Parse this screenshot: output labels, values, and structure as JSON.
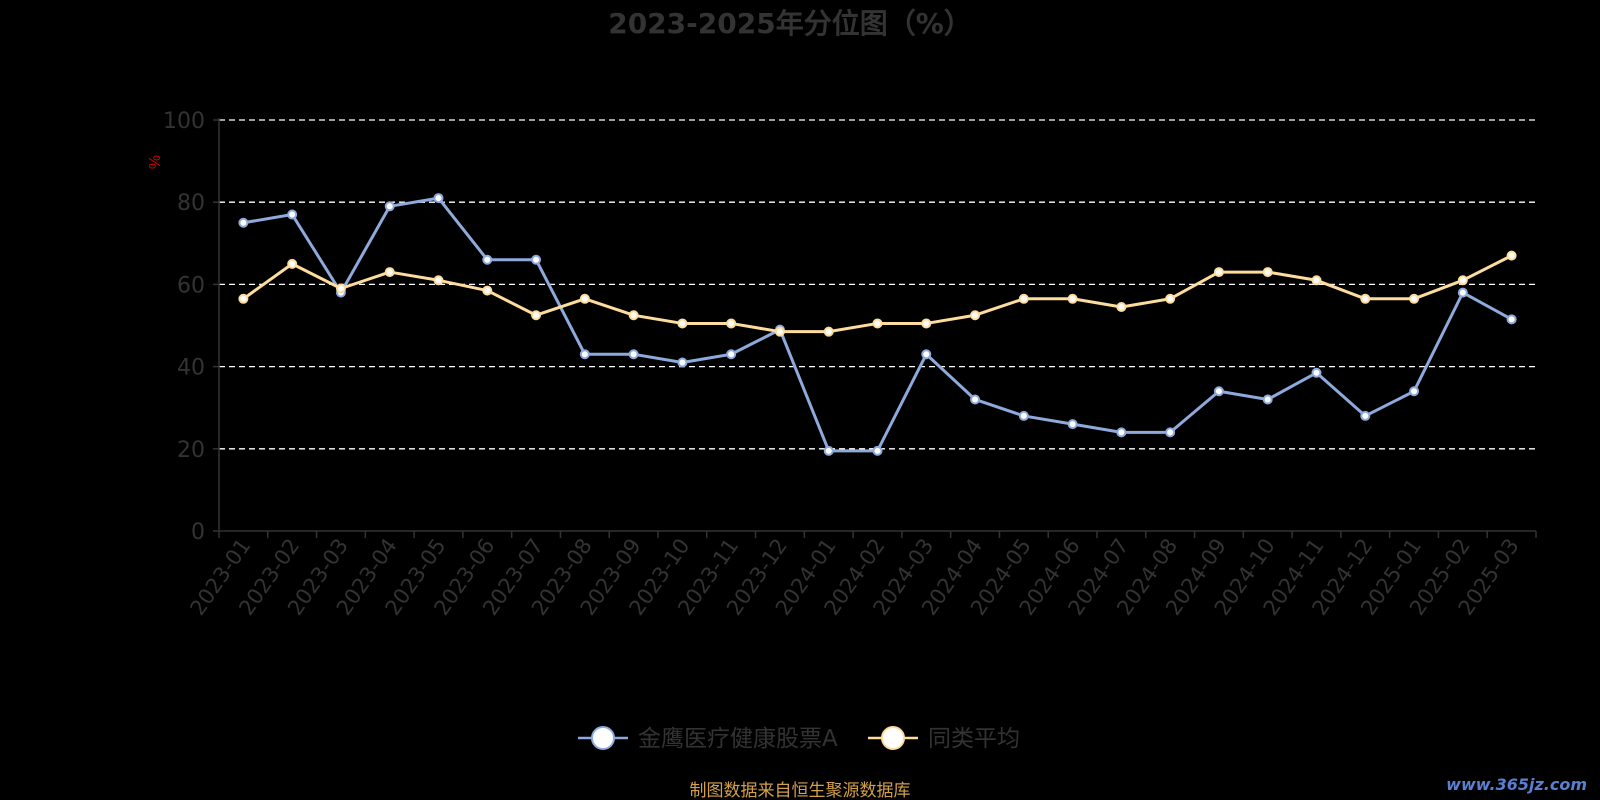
{
  "chart_data": {
    "type": "line",
    "title": "2023-2025年分位图（%）",
    "ylabel": "%",
    "ylim": [
      0,
      100
    ],
    "yticks": [
      0,
      20,
      40,
      60,
      80,
      100
    ],
    "grid": true,
    "legend_position": "bottom",
    "categories": [
      "2023-01",
      "2023-02",
      "2023-03",
      "2023-04",
      "2023-05",
      "2023-06",
      "2023-07",
      "2023-08",
      "2023-09",
      "2023-10",
      "2023-11",
      "2023-12",
      "2024-01",
      "2024-02",
      "2024-03",
      "2024-04",
      "2024-05",
      "2024-06",
      "2024-07",
      "2024-08",
      "2024-09",
      "2024-10",
      "2024-11",
      "2024-12",
      "2025-01",
      "2025-02",
      "2025-03"
    ],
    "series": [
      {
        "name": "金鹰医疗健康股票A",
        "color": "#8eaadc",
        "values": [
          75,
          77,
          58,
          79,
          81,
          66,
          66,
          43,
          43,
          41,
          43,
          49,
          19.5,
          19.5,
          43,
          32,
          28,
          26,
          24,
          24,
          34,
          32,
          38.5,
          28,
          34,
          58,
          51.5
        ]
      },
      {
        "name": "同类平均",
        "color": "#fddc9c",
        "values": [
          56.5,
          65,
          59,
          63,
          61,
          58.5,
          52.5,
          56.5,
          52.5,
          50.5,
          50.5,
          48.5,
          48.5,
          50.5,
          50.5,
          52.5,
          56.5,
          56.5,
          54.5,
          56.5,
          63,
          63,
          61,
          56.5,
          56.5,
          61,
          67
        ]
      }
    ]
  },
  "footer": {
    "source": "制图数据来自恒生聚源数据库",
    "watermark": "www.365jz.com"
  },
  "colors": {
    "background": "#000000",
    "title": "#333333",
    "axis_text": "#333333",
    "ylabel": "#cc0000",
    "grid": "#ffffff",
    "source": "#d4a04a",
    "watermark": "#5b7fd0"
  }
}
